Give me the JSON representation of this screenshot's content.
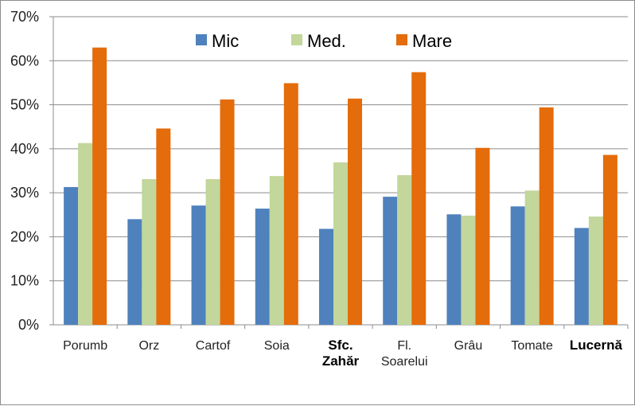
{
  "colors": {
    "Mic": "#4f81bd",
    "Med.": "#c3d69b",
    "Mare": "#e46c0a",
    "grid": "#8c8c8c",
    "axis": "#8c8c8c"
  },
  "chart_data": {
    "type": "bar",
    "title": "",
    "xlabel": "",
    "ylabel": "",
    "ylim": [
      0,
      70
    ],
    "yticks": [
      "0%",
      "10%",
      "20%",
      "30%",
      "40%",
      "50%",
      "60%",
      "70%"
    ],
    "grid": true,
    "legend": "top",
    "categories": [
      [
        "Porumb"
      ],
      [
        "Orz"
      ],
      [
        "Cartof"
      ],
      [
        "Soia"
      ],
      [
        "Sfc.",
        "Zahăr"
      ],
      [
        "Fl.",
        "Soarelui"
      ],
      [
        "Grâu"
      ],
      [
        "Tomate"
      ],
      [
        "Lucernă"
      ]
    ],
    "bold_categories": [
      4,
      8
    ],
    "series": [
      {
        "name": "Mic",
        "values": [
          31.3,
          24.0,
          27.1,
          26.4,
          21.8,
          29.1,
          25.1,
          26.9,
          22.0
        ]
      },
      {
        "name": "Med.",
        "values": [
          41.3,
          33.1,
          33.1,
          33.8,
          36.9,
          34.0,
          24.8,
          30.5,
          24.6
        ]
      },
      {
        "name": "Mare",
        "values": [
          63.0,
          44.6,
          51.2,
          54.9,
          51.4,
          57.4,
          40.2,
          49.4,
          38.6
        ]
      }
    ]
  }
}
